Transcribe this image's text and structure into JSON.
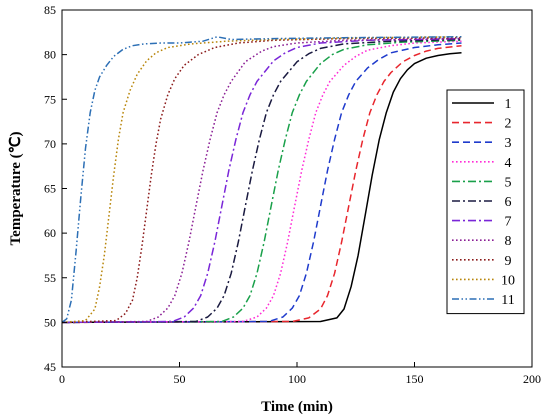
{
  "chart_data": {
    "type": "line",
    "xlabel": "Time (min)",
    "ylabel": "Temperature (℃)",
    "xlim": [
      0,
      200
    ],
    "ylim": [
      45,
      85
    ],
    "xticks": [
      "0",
      "50",
      "100",
      "150",
      "200"
    ],
    "yticks": [
      "45",
      "50",
      "55",
      "60",
      "65",
      "70",
      "75",
      "80",
      "85"
    ],
    "grid": false,
    "legend_position": "right",
    "series": [
      {
        "name": "1",
        "color": "#000000",
        "dash": "solid",
        "x": [
          0,
          110,
          117,
          120,
          123,
          126,
          129,
          132,
          135,
          138,
          141,
          144,
          147,
          150,
          155,
          160,
          165,
          170
        ],
        "y": [
          50,
          50.1,
          50.5,
          51.5,
          54,
          57.5,
          62,
          66.5,
          70.5,
          73.5,
          75.8,
          77.3,
          78.3,
          79,
          79.6,
          79.9,
          80.1,
          80.2
        ]
      },
      {
        "name": "2",
        "color": "#e8262d",
        "dash": "dash",
        "x": [
          0,
          98,
          105,
          110,
          113,
          116,
          119,
          122,
          125,
          128,
          131,
          134,
          137,
          140,
          145,
          150,
          155,
          160,
          170
        ],
        "y": [
          50,
          50.1,
          50.5,
          51.5,
          53,
          55.5,
          59,
          63,
          67,
          70.5,
          73.5,
          75.5,
          77,
          78,
          79.2,
          79.9,
          80.4,
          80.7,
          81
        ]
      },
      {
        "name": "3",
        "color": "#1f3bcc",
        "dash": "dash",
        "x": [
          0,
          88,
          94,
          98,
          101,
          104,
          107,
          110,
          113,
          116,
          119,
          122,
          125,
          130,
          135,
          140,
          150,
          160,
          170
        ],
        "y": [
          50,
          50.1,
          50.6,
          51.6,
          53,
          55.5,
          59,
          63,
          67,
          70.5,
          73.5,
          75.5,
          77,
          78.5,
          79.5,
          80.2,
          80.8,
          81.1,
          81.3
        ]
      },
      {
        "name": "4",
        "color": "#ff2bd6",
        "dash": "dot",
        "x": [
          0,
          77,
          83,
          87,
          90,
          93,
          96,
          99,
          102,
          105,
          108,
          111,
          114,
          120,
          125,
          130,
          140,
          150,
          170
        ],
        "y": [
          50,
          50.1,
          50.6,
          51.6,
          53,
          55.5,
          59,
          63,
          67,
          70.5,
          73.5,
          75.5,
          77,
          78.8,
          79.8,
          80.5,
          81,
          81.3,
          81.5
        ]
      },
      {
        "name": "5",
        "color": "#19a04a",
        "dash": "dashdot",
        "x": [
          0,
          68,
          73,
          77,
          80,
          83,
          86,
          89,
          92,
          95,
          98,
          101,
          104,
          110,
          115,
          120,
          130,
          145,
          170
        ],
        "y": [
          50,
          50.1,
          50.6,
          51.6,
          53,
          55.5,
          59,
          63,
          67,
          70.5,
          73.5,
          75.5,
          77,
          79,
          80,
          80.6,
          81.1,
          81.4,
          81.6
        ]
      },
      {
        "name": "6",
        "color": "#1a1a40",
        "dash": "dashdot",
        "x": [
          0,
          57,
          62,
          66,
          69,
          72,
          75,
          78,
          81,
          84,
          87,
          90,
          93,
          100,
          105,
          110,
          120,
          140,
          170
        ],
        "y": [
          50,
          50.1,
          50.6,
          51.6,
          53,
          55.5,
          59,
          63,
          67,
          70.5,
          73.5,
          75.5,
          77,
          79.2,
          80.1,
          80.7,
          81.2,
          81.5,
          81.7
        ]
      },
      {
        "name": "7",
        "color": "#7a26d8",
        "dash": "dashdot",
        "x": [
          0,
          47,
          52,
          56,
          59,
          62,
          65,
          68,
          71,
          74,
          77,
          80,
          83,
          90,
          95,
          100,
          110,
          130,
          170
        ],
        "y": [
          50,
          50.1,
          50.6,
          51.6,
          53,
          55.5,
          59,
          63,
          67,
          70.5,
          73.5,
          75.5,
          77,
          79.3,
          80.2,
          80.8,
          81.3,
          81.6,
          81.8
        ]
      },
      {
        "name": "8",
        "color": "#8b1f95",
        "dash": "dot",
        "x": [
          0,
          36,
          41,
          45,
          48,
          51,
          54,
          57,
          60,
          63,
          66,
          69,
          72,
          78,
          85,
          90,
          100,
          120,
          170
        ],
        "y": [
          50,
          50.1,
          50.6,
          51.6,
          53,
          55.5,
          59,
          63,
          67,
          70.5,
          73.5,
          75.5,
          77,
          79.2,
          80.4,
          80.9,
          81.3,
          81.6,
          81.8
        ]
      },
      {
        "name": "9",
        "color": "#8b1a1a",
        "dash": "dot",
        "x": [
          0,
          23,
          27,
          30,
          32,
          34,
          36,
          38,
          40,
          42,
          45,
          48,
          52,
          58,
          65,
          75,
          90,
          120,
          170
        ],
        "y": [
          50,
          50.2,
          51,
          52.5,
          55,
          58.5,
          62.5,
          66.5,
          70,
          72.8,
          75.5,
          77.3,
          78.8,
          80,
          80.8,
          81.3,
          81.6,
          81.8,
          81.9
        ]
      },
      {
        "name": "10",
        "color": "#b8860b",
        "dash": "dot",
        "x": [
          0,
          10,
          14,
          16,
          18,
          20,
          22,
          24,
          26,
          29,
          32,
          36,
          40,
          45,
          55,
          70,
          90,
          130,
          170
        ],
        "y": [
          50,
          50.2,
          51.5,
          54,
          57.5,
          62,
          66.5,
          70.5,
          73.5,
          76,
          77.8,
          79.3,
          80.2,
          80.8,
          81.2,
          81.5,
          81.7,
          81.9,
          82
        ]
      },
      {
        "name": "11",
        "color": "#2c6fb5",
        "dash": "dashdotdot",
        "x": [
          0,
          2,
          4,
          6,
          8,
          10,
          12,
          14,
          16,
          19,
          22,
          26,
          30,
          35,
          42,
          50,
          60,
          66,
          72,
          90,
          120,
          170
        ],
        "y": [
          50,
          50.4,
          52.5,
          58,
          64,
          69.5,
          73.5,
          76,
          77.5,
          78.8,
          79.8,
          80.6,
          81,
          81.2,
          81.3,
          81.3,
          81.5,
          82,
          81.7,
          81.8,
          81.9,
          82
        ]
      }
    ]
  }
}
